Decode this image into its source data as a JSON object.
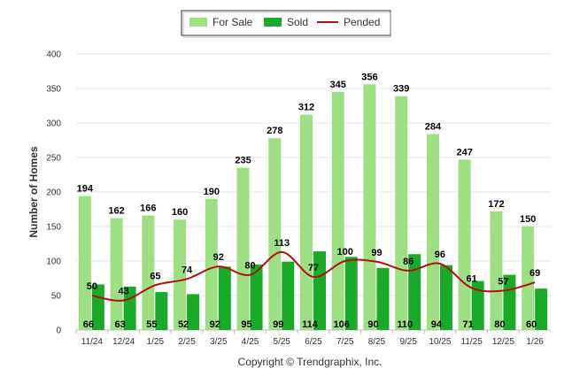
{
  "chart_data": {
    "type": "bar",
    "categories": [
      "11/24",
      "12/24",
      "1/25",
      "2/25",
      "3/25",
      "4/25",
      "5/25",
      "6/25",
      "7/25",
      "8/25",
      "9/25",
      "10/25",
      "11/25",
      "12/25",
      "1/26"
    ],
    "series": [
      {
        "name": "For Sale",
        "type": "bar",
        "color": "#9edf83",
        "values": [
          194,
          162,
          166,
          160,
          190,
          235,
          278,
          312,
          345,
          356,
          339,
          284,
          247,
          172,
          150
        ]
      },
      {
        "name": "Sold",
        "type": "bar",
        "color": "#1aaa2a",
        "values": [
          66,
          63,
          55,
          52,
          92,
          95,
          99,
          114,
          106,
          90,
          110,
          94,
          71,
          80,
          60
        ]
      },
      {
        "name": "Pended",
        "type": "line",
        "color": "#b01010",
        "values": [
          50,
          43,
          65,
          74,
          92,
          80,
          113,
          77,
          100,
          99,
          86,
          96,
          61,
          57,
          69
        ]
      }
    ],
    "ylabel": "Number of Homes",
    "xlabel": "",
    "ylim": [
      0,
      400
    ],
    "yticks": [
      0,
      50,
      100,
      150,
      200,
      250,
      300,
      350,
      400
    ],
    "grid": true,
    "legend": "top-center"
  },
  "footer": "Copyright © Trendgraphix, Inc."
}
